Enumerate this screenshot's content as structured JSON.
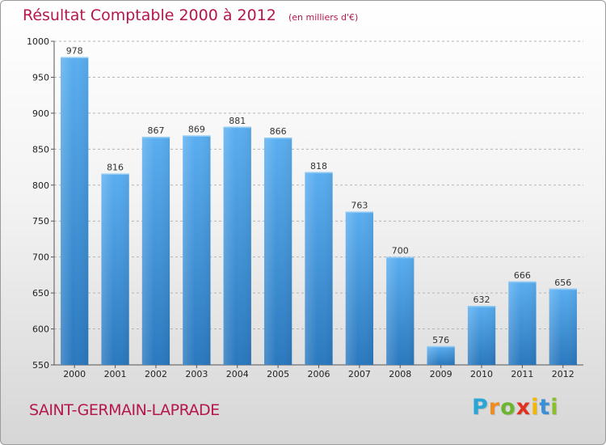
{
  "header": {
    "title": "Résultat Comptable 2000 à 2012",
    "unit": "(en milliers d'€)"
  },
  "footer": {
    "commune": "SAINT-GERMAIN-LAPRADE",
    "brand": [
      "P",
      "r",
      "o",
      "x",
      "i",
      "t",
      "i"
    ],
    "brand_colors": [
      "#2aa6d6",
      "#f08b1e",
      "#6bb52f",
      "#e0321e",
      "#f2b705",
      "#3a8fd6",
      "#8bbf2a"
    ]
  },
  "colors": {
    "title": "#b5174d",
    "bar_top": "#5aaef0",
    "bar_bottom": "#2a78be"
  },
  "chart_data": {
    "type": "bar",
    "categories": [
      "2000",
      "2001",
      "2002",
      "2003",
      "2004",
      "2005",
      "2006",
      "2007",
      "2008",
      "2009",
      "2010",
      "2011",
      "2012"
    ],
    "values": [
      978,
      816,
      867,
      869,
      881,
      866,
      818,
      763,
      700,
      576,
      632,
      666,
      656
    ],
    "yticks": [
      550,
      600,
      650,
      700,
      750,
      800,
      850,
      900,
      950,
      1000
    ],
    "ylim": [
      550,
      1000
    ],
    "grid": true
  }
}
